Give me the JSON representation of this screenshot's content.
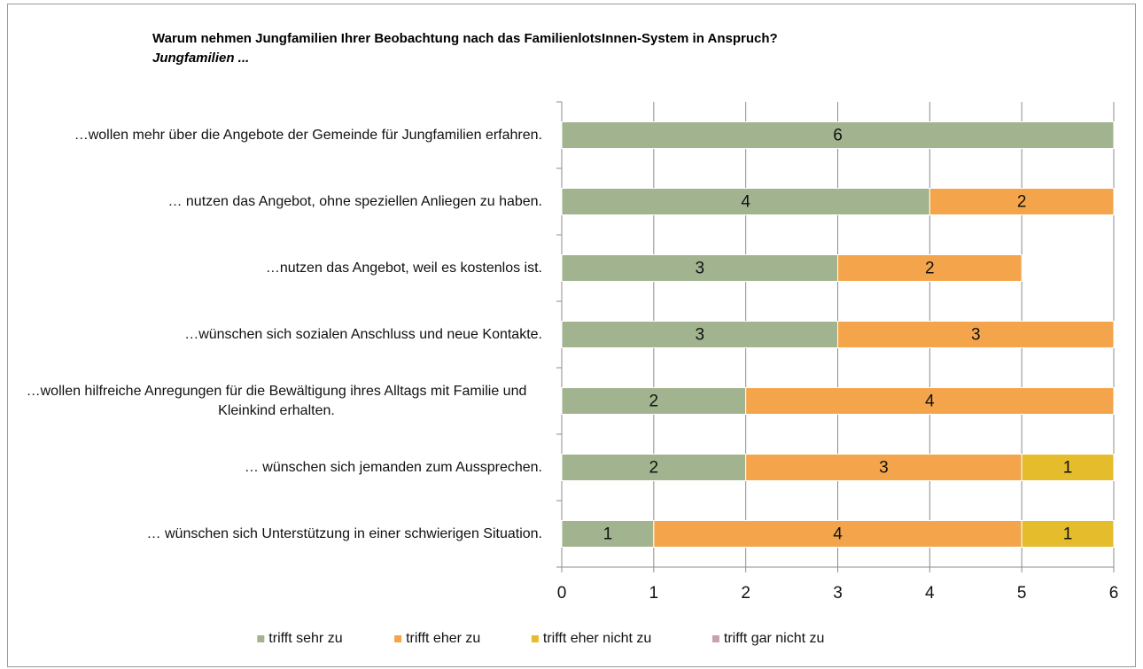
{
  "chart_data": {
    "type": "stacked_bar_horizontal",
    "title": "Warum nehmen Jungfamilien Ihrer Beobachtung nach das FamilienlotsInnen-System in Anspruch?",
    "subtitle": "Jungfamilien ...",
    "categories": [
      "…wollen mehr über die Angebote der Gemeinde für Jungfamilien erfahren.",
      "… nutzen das Angebot, ohne speziellen Anliegen zu haben.",
      "…nutzen das Angebot, weil es kostenlos ist.",
      "…wünschen sich sozialen Anschluss und neue Kontakte.",
      "…wollen hilfreiche Anregungen für die Bewältigung ihres Alltags mit Familie und Kleinkind erhalten.",
      "… wünschen sich jemanden zum Aussprechen.",
      "… wünschen sich Unterstützung in einer schwierigen Situation."
    ],
    "series": [
      {
        "name": "trifft sehr zu",
        "color": "#a2b48f",
        "values": [
          6,
          4,
          3,
          3,
          2,
          2,
          1
        ]
      },
      {
        "name": "trifft eher zu",
        "color": "#f4a54c",
        "values": [
          null,
          2,
          2,
          3,
          4,
          3,
          4
        ]
      },
      {
        "name": "trifft eher nicht zu",
        "color": "#e5bc2c",
        "values": [
          null,
          null,
          null,
          null,
          null,
          1,
          1
        ]
      },
      {
        "name": "trifft gar nicht zu",
        "color": "#c9a0b3",
        "values": [
          null,
          null,
          null,
          null,
          null,
          null,
          null
        ]
      }
    ],
    "xlim": [
      0,
      6
    ],
    "xticks": [
      0,
      1,
      2,
      3,
      4,
      5,
      6
    ],
    "grid": true,
    "legend": "bottom"
  }
}
